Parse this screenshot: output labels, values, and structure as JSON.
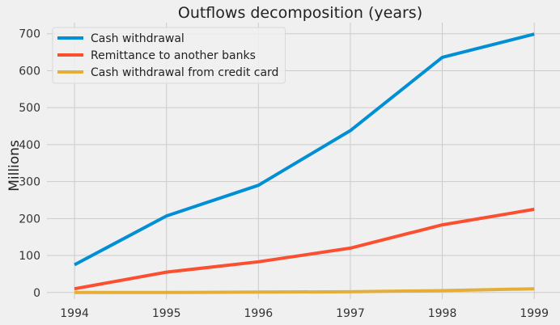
{
  "chart_data": {
    "type": "line",
    "title": "Outflows decomposition (years)",
    "xlabel": "",
    "ylabel": "Millions",
    "x": [
      1994,
      1995,
      1996,
      1997,
      1998,
      1999
    ],
    "xlim": [
      1993.7,
      1999.28
    ],
    "ylim": [
      -18,
      730
    ],
    "yticks": [
      0,
      100,
      200,
      300,
      400,
      500,
      600,
      700
    ],
    "grid": true,
    "legend_position": "top-left",
    "series": [
      {
        "name": "Cash withdrawal",
        "color": "#008fd5",
        "values": [
          75,
          207,
          290,
          438,
          636,
          699
        ]
      },
      {
        "name": "Remittance to another banks",
        "color": "#fc4f30",
        "values": [
          10,
          55,
          83,
          120,
          183,
          225
        ]
      },
      {
        "name": "Cash withdrawal from credit card",
        "color": "#e5ae38",
        "values": [
          0,
          0,
          1,
          2,
          5,
          10
        ]
      }
    ]
  }
}
